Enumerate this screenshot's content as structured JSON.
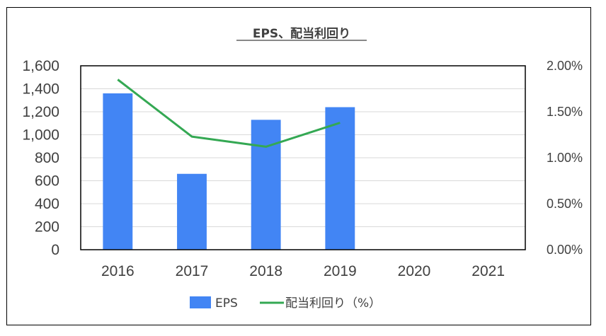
{
  "colors": {
    "bar": "#4285f4",
    "line": "#34a853",
    "gridline": "#d9d9d9",
    "text": "#404040",
    "plot_border": "#000000"
  },
  "chart_data": {
    "type": "bar",
    "title": "EPS、配当利回り",
    "categories": [
      "2016",
      "2017",
      "2018",
      "2019",
      "2020",
      "2021"
    ],
    "series": [
      {
        "name": "EPS",
        "type": "bar",
        "axis": "left",
        "values": [
          1360,
          660,
          1130,
          1240,
          null,
          null
        ]
      },
      {
        "name": "配当利回り（%）",
        "type": "line",
        "axis": "right",
        "values": [
          1.85,
          1.23,
          1.12,
          1.38,
          null,
          null
        ]
      }
    ],
    "y_left": {
      "range": [
        0,
        1600
      ],
      "ticks": [
        "0",
        "200",
        "400",
        "600",
        "800",
        "1,000",
        "1,200",
        "1,400",
        "1,600"
      ]
    },
    "y_right": {
      "range": [
        0,
        2.0
      ],
      "ticks": [
        "0.00%",
        "0.50%",
        "1.00%",
        "1.50%",
        "2.00%"
      ]
    },
    "grid": true,
    "legend_position": "bottom"
  }
}
